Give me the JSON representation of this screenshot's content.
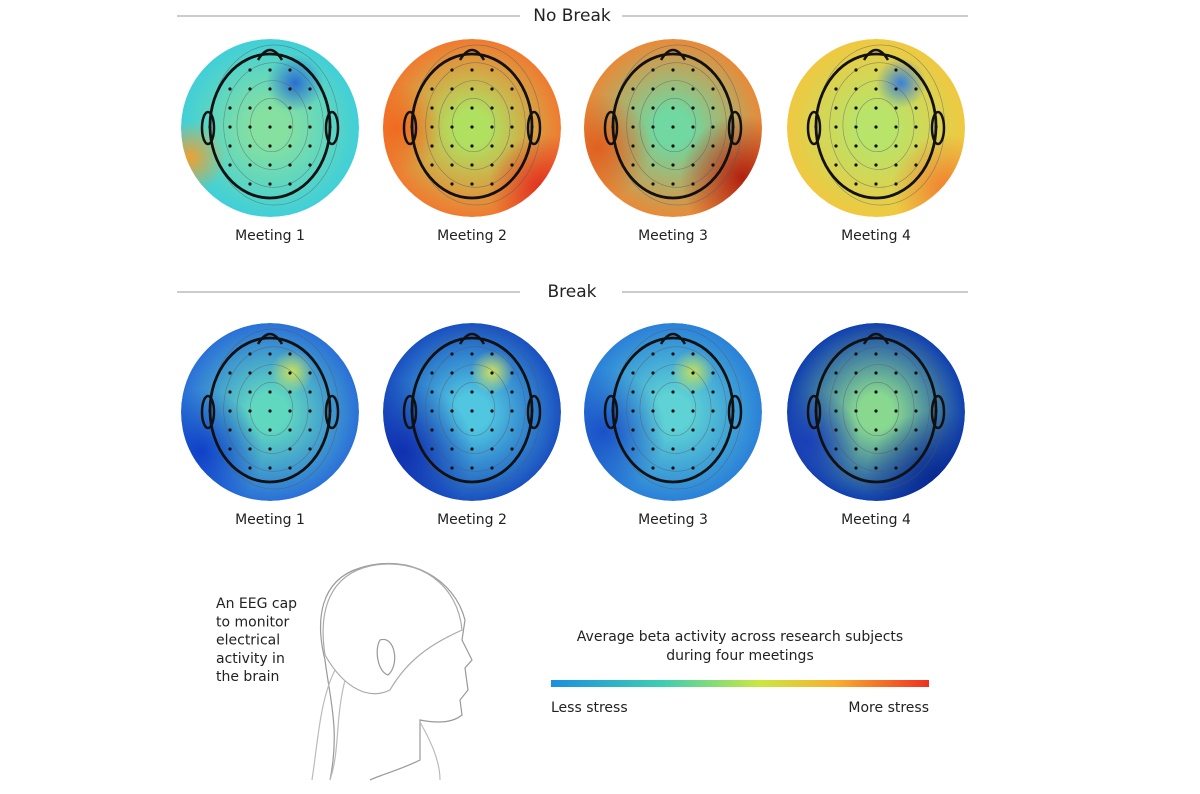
{
  "sections": [
    {
      "title": "No Break",
      "maps": [
        "Meeting 1",
        "Meeting 2",
        "Meeting 3",
        "Meeting 4"
      ]
    },
    {
      "title": "Break",
      "maps": [
        "Meeting 1",
        "Meeting 2",
        "Meeting 3",
        "Meeting 4"
      ]
    }
  ],
  "caption": [
    "An EEG cap",
    "to monitor",
    "electrical",
    "activity in",
    "the brain"
  ],
  "legend": {
    "title": [
      "Average beta activity across research subjects",
      "during four meetings"
    ],
    "low": "Less stress",
    "high": "More stress"
  }
}
